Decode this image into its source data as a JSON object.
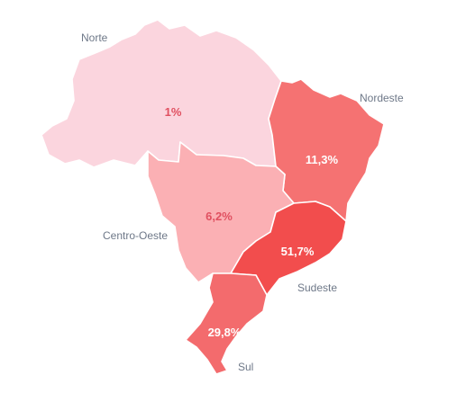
{
  "regions": [
    {
      "id": "norte",
      "name": "Norte",
      "value_label": "1%",
      "share": 1,
      "color": "#fbd5de",
      "label_color": "#e05060"
    },
    {
      "id": "nordeste",
      "name": "Nordeste",
      "value_label": "11,3%",
      "share": 11.3,
      "color": "#f57272",
      "label_color": "#ffffff"
    },
    {
      "id": "centro-oeste",
      "name": "Centro-Oeste",
      "value_label": "6,2%",
      "share": 6.2,
      "color": "#fbb0b4",
      "label_color": "#e05060"
    },
    {
      "id": "sudeste",
      "name": "Sudeste",
      "value_label": "51,7%",
      "share": 51.7,
      "color": "#f24d4d",
      "label_color": "#ffffff"
    },
    {
      "id": "sul",
      "name": "Sul",
      "value_label": "29,8%",
      "share": 29.8,
      "color": "#f36b6d",
      "label_color": "#ffffff"
    }
  ]
}
